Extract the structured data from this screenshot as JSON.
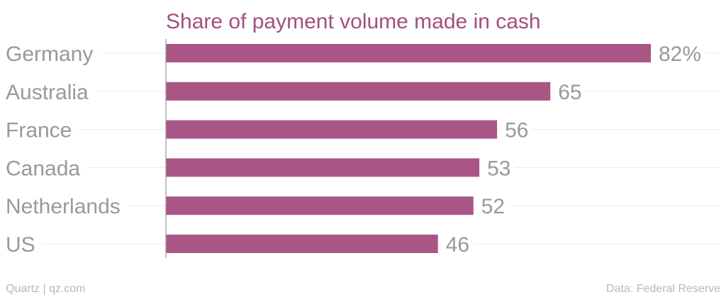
{
  "colors": {
    "bar": "#a95686",
    "title": "#a34f80",
    "label": "#999999",
    "grid": "#ececec",
    "axis": "#9a9a9a",
    "footer": "#b8b8b8"
  },
  "footer": {
    "source_left": "Quartz | qz.com",
    "source_right": "Data: Federal Reserve"
  },
  "chart_data": {
    "type": "bar",
    "orientation": "horizontal",
    "title": "Share of payment volume made in cash",
    "categories": [
      "Germany",
      "Australia",
      "France",
      "Canada",
      "Netherlands",
      "US"
    ],
    "values": [
      82,
      65,
      56,
      53,
      52,
      46
    ],
    "value_labels": [
      "82%",
      "65",
      "56",
      "53",
      "52",
      "46"
    ],
    "xlim": [
      0,
      100
    ],
    "grid": true,
    "legend": "none"
  }
}
